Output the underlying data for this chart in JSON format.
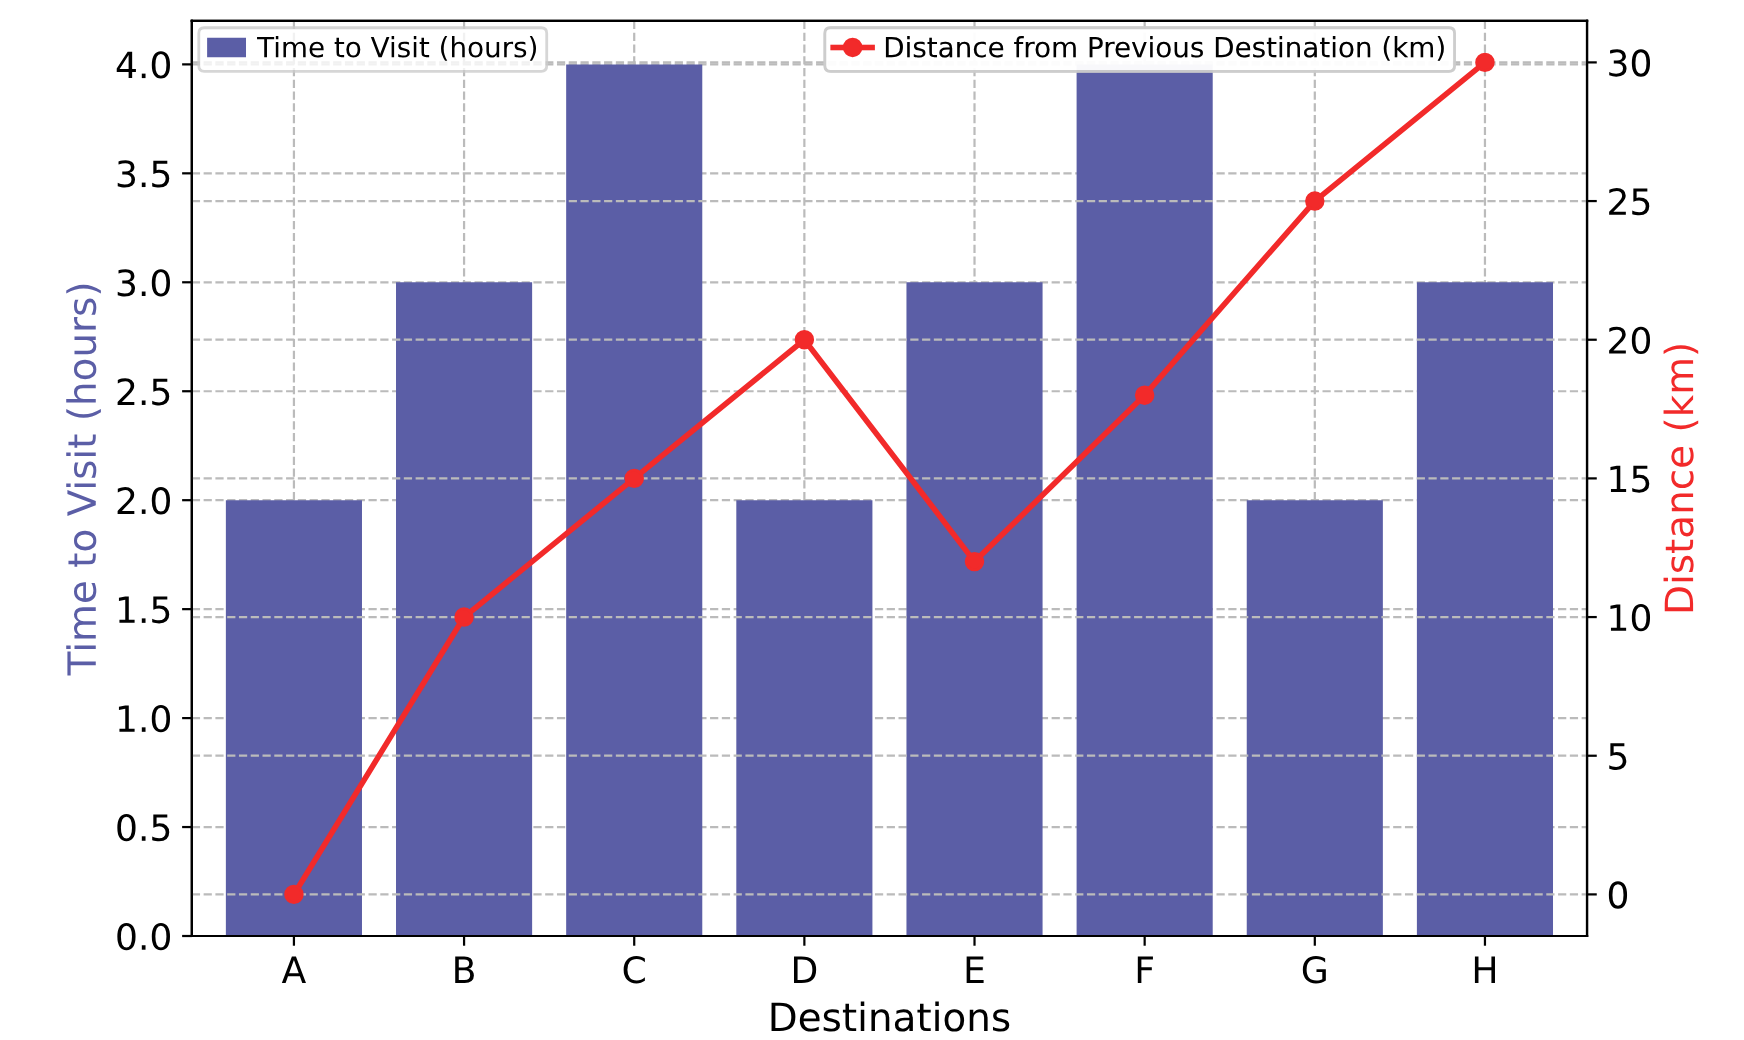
{
  "chart_data": {
    "type": "bar",
    "xlabel": "Destinations",
    "ylabel": "Time to Visit (hours)",
    "y2label": "Distance (km)",
    "categories": [
      "A",
      "B",
      "C",
      "D",
      "E",
      "F",
      "G",
      "H"
    ],
    "series": [
      {
        "name": "Time to Visit (hours)",
        "color": "#5b5ea6",
        "values": [
          2,
          3,
          4,
          2,
          3,
          4,
          2,
          3
        ]
      },
      {
        "name": "Distance from Previous Destination (km)",
        "type": "line",
        "axis": "y2",
        "color": "#f22a2a",
        "values": [
          0,
          10,
          15,
          20,
          12,
          18,
          25,
          30
        ]
      }
    ],
    "ylim": [
      0,
      4.2
    ],
    "yticks": [
      {
        "value": 0,
        "label": "0.0"
      },
      {
        "value": 0.5,
        "label": "0.5"
      },
      {
        "value": 1,
        "label": "1.0"
      },
      {
        "value": 1.5,
        "label": "1.5"
      },
      {
        "value": 2,
        "label": "2.0"
      },
      {
        "value": 2.5,
        "label": "2.5"
      },
      {
        "value": 3,
        "label": "3.0"
      },
      {
        "value": 3.5,
        "label": "3.5"
      },
      {
        "value": 4,
        "label": "4.0"
      }
    ],
    "y2lim": [
      -1.5,
      31.5
    ],
    "y2ticks": [
      0,
      5,
      10,
      15,
      20,
      25,
      30
    ],
    "grid": true,
    "legend": "top",
    "marker": "circle",
    "line_style": "solid"
  }
}
